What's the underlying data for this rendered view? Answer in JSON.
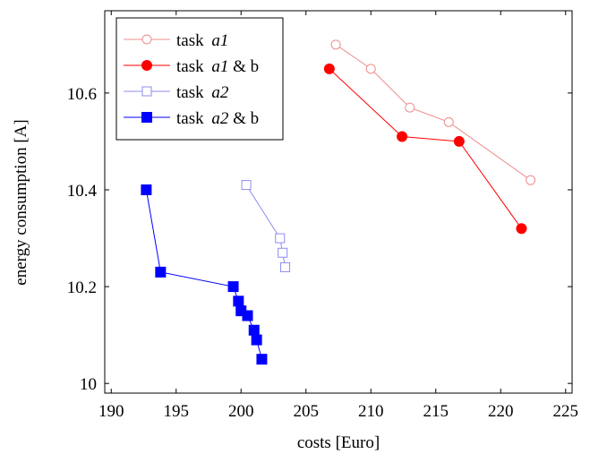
{
  "chart_data": {
    "type": "line",
    "xlabel": "costs [Euro]",
    "ylabel": "energy consumption [A]",
    "xlim": [
      189.5,
      225.5
    ],
    "ylim": [
      9.98,
      10.77
    ],
    "xticks": [
      190,
      195,
      200,
      205,
      210,
      215,
      220,
      225
    ],
    "yticks": [
      10,
      10.2,
      10.4,
      10.6
    ],
    "ytick_labels": [
      "10",
      "10.2",
      "10.4",
      "10.6"
    ],
    "grid": false,
    "legend_position": "top-left",
    "series": [
      {
        "name_prefix": "task ",
        "name_math": "a1",
        "name_suffix": "",
        "color": "#f08c8c",
        "marker": "circle-open",
        "x": [
          207.3,
          210.0,
          213.0,
          216.0,
          222.3
        ],
        "y": [
          10.7,
          10.65,
          10.57,
          10.54,
          10.42
        ]
      },
      {
        "name_prefix": "task ",
        "name_math": "a1",
        "name_suffix": " & b",
        "color": "#ff0000",
        "marker": "circle-filled",
        "x": [
          206.8,
          212.4,
          216.8,
          221.6
        ],
        "y": [
          10.65,
          10.51,
          10.5,
          10.32
        ]
      },
      {
        "name_prefix": "task ",
        "name_math": "a2",
        "name_suffix": "",
        "color": "#8c8cf0",
        "marker": "square-open",
        "x": [
          200.4,
          203.0,
          203.2,
          203.4
        ],
        "y": [
          10.41,
          10.3,
          10.27,
          10.24
        ]
      },
      {
        "name_prefix": "task ",
        "name_math": "a2",
        "name_suffix": " & b",
        "color": "#0000ff",
        "marker": "square-filled",
        "x": [
          192.7,
          193.8,
          199.4,
          199.8,
          200.0,
          200.5,
          201.0,
          201.2,
          201.6
        ],
        "y": [
          10.4,
          10.23,
          10.2,
          10.17,
          10.15,
          10.14,
          10.11,
          10.09,
          10.05
        ]
      }
    ]
  }
}
